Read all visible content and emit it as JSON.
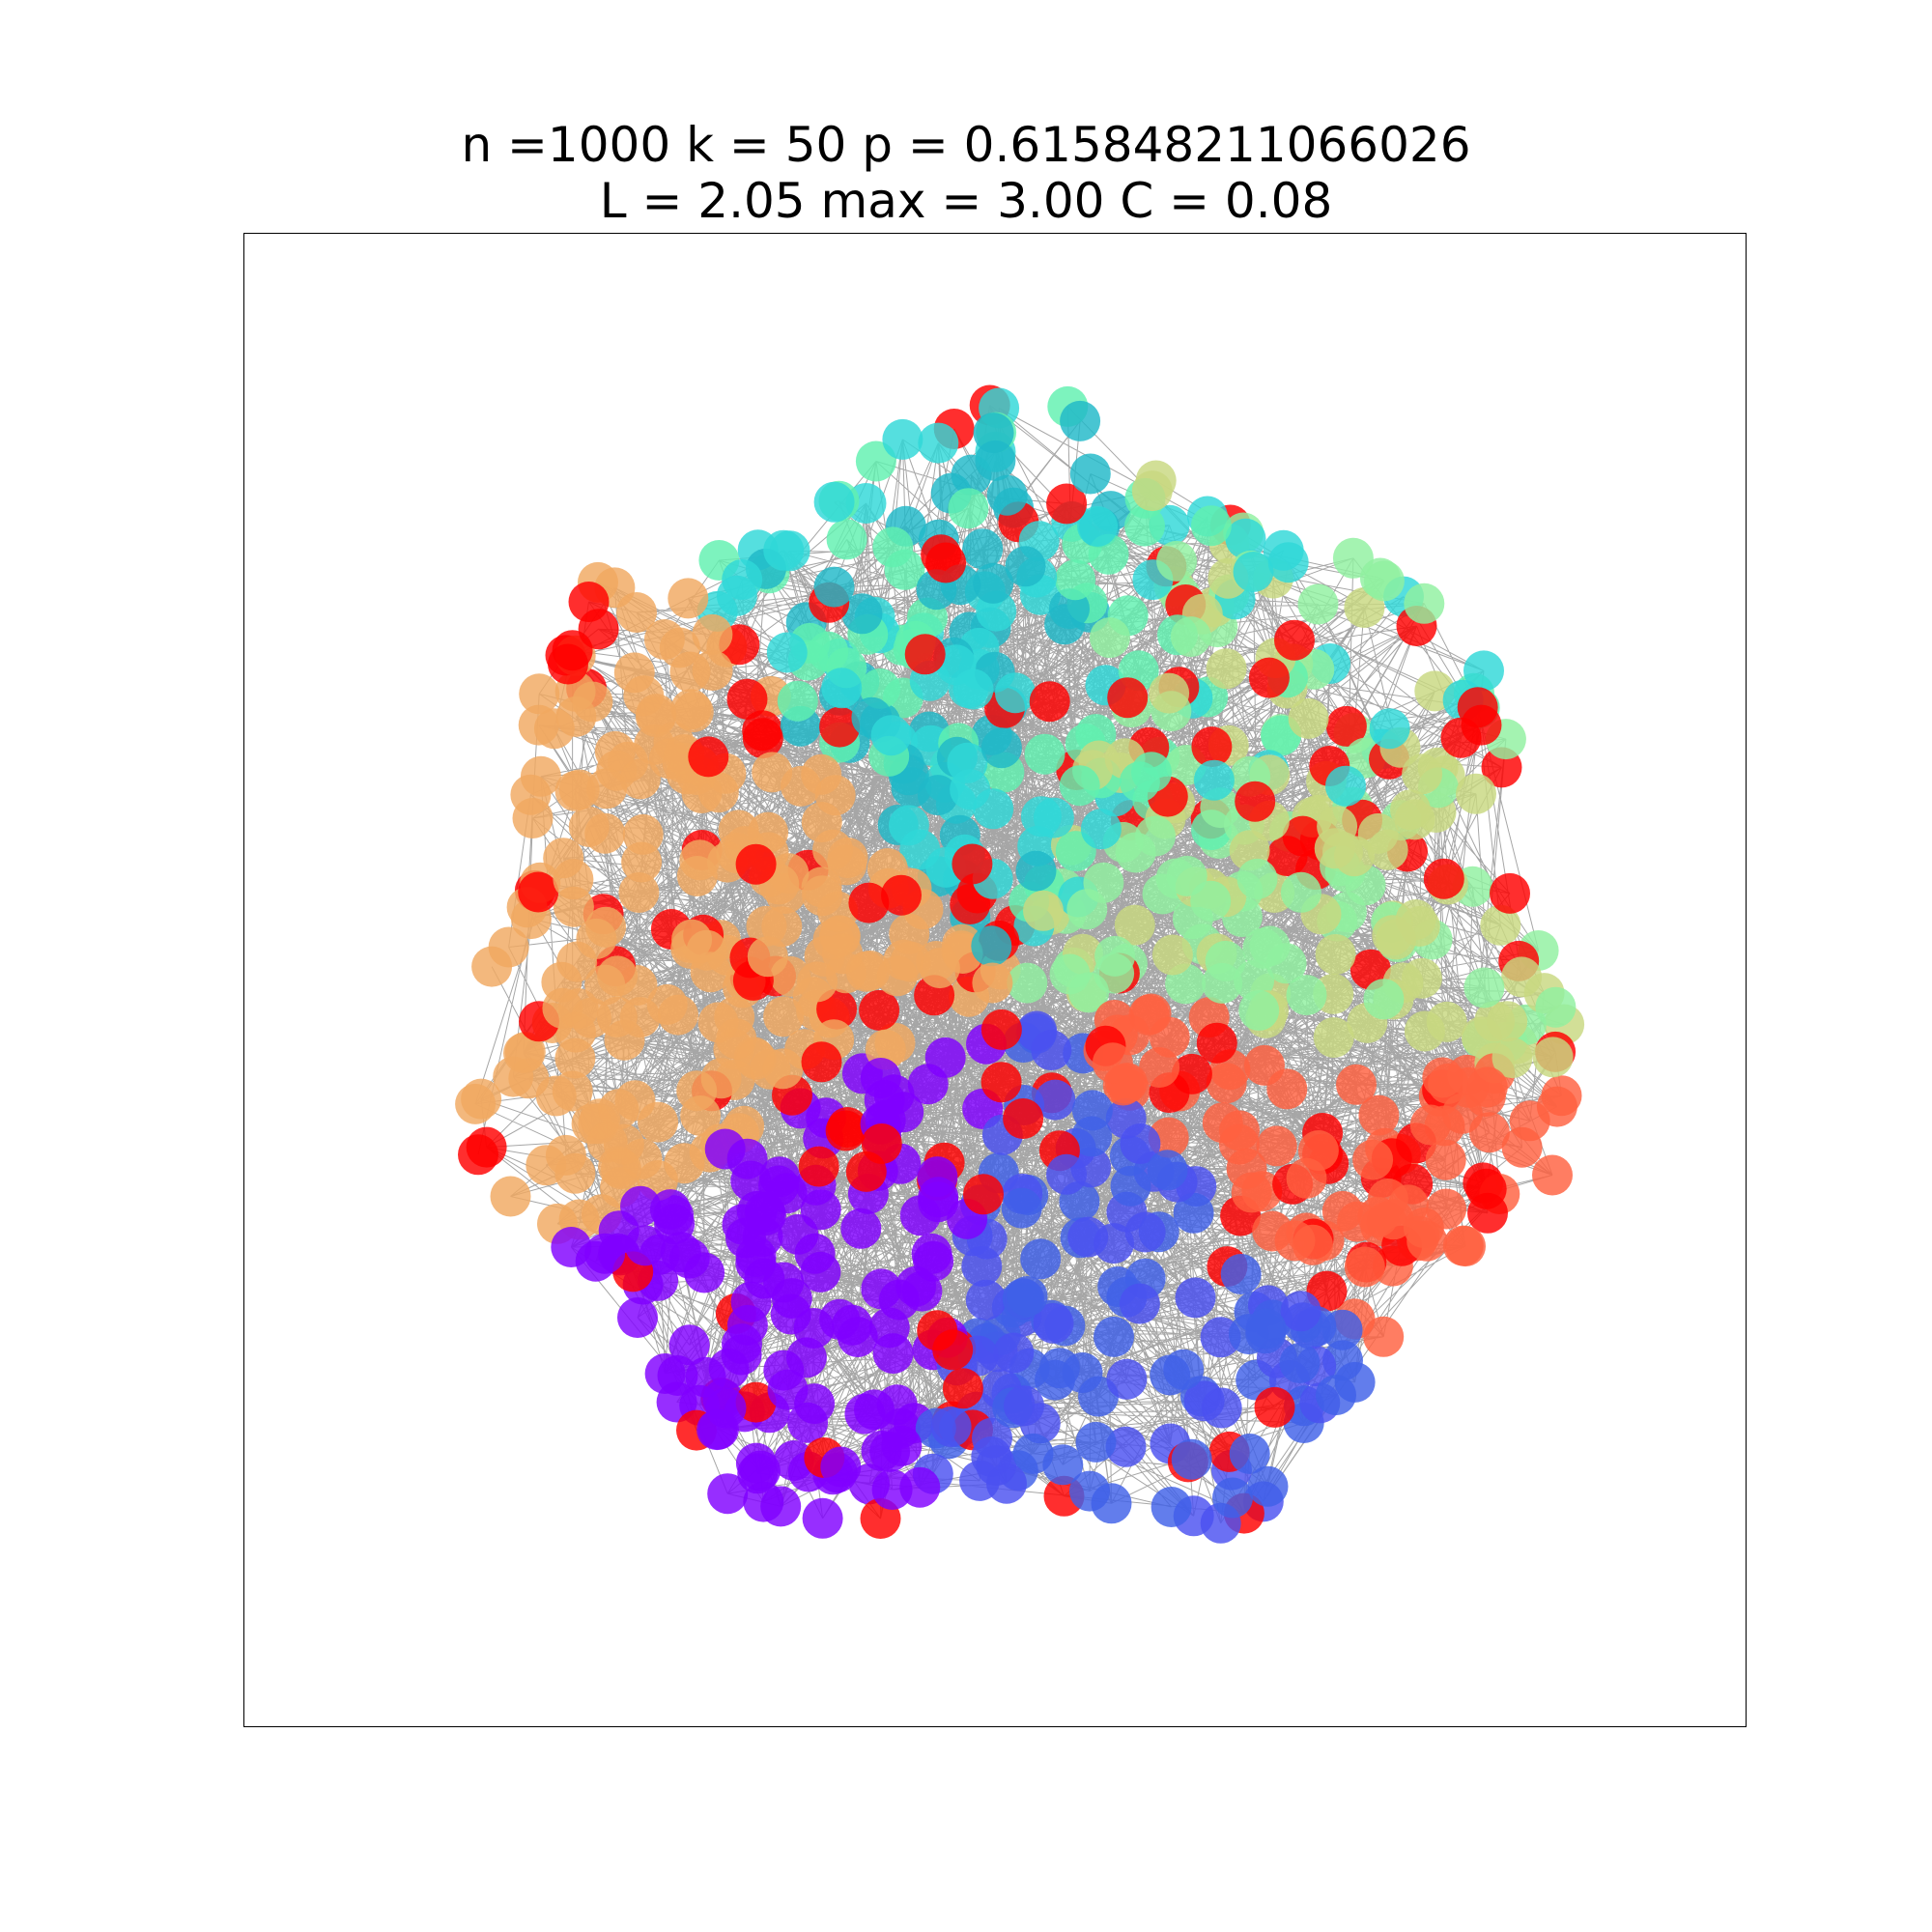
{
  "figure": {
    "title_line1": "n =1000 k = 50 p = 0.615848211066026",
    "title_line2": "L = 2.05 max = 3.00 C = 0.08"
  },
  "graph": {
    "node_count": 1000,
    "node_colors": [
      "#8000ff",
      "#4a50f0",
      "#4060e8",
      "#1a90d8",
      "#20b8c8",
      "#30d8d8",
      "#60f0b0",
      "#90f0a0",
      "#c8d880",
      "#f0a860",
      "#ff6040",
      "#ff0000"
    ],
    "edge_color": "#000000"
  }
}
